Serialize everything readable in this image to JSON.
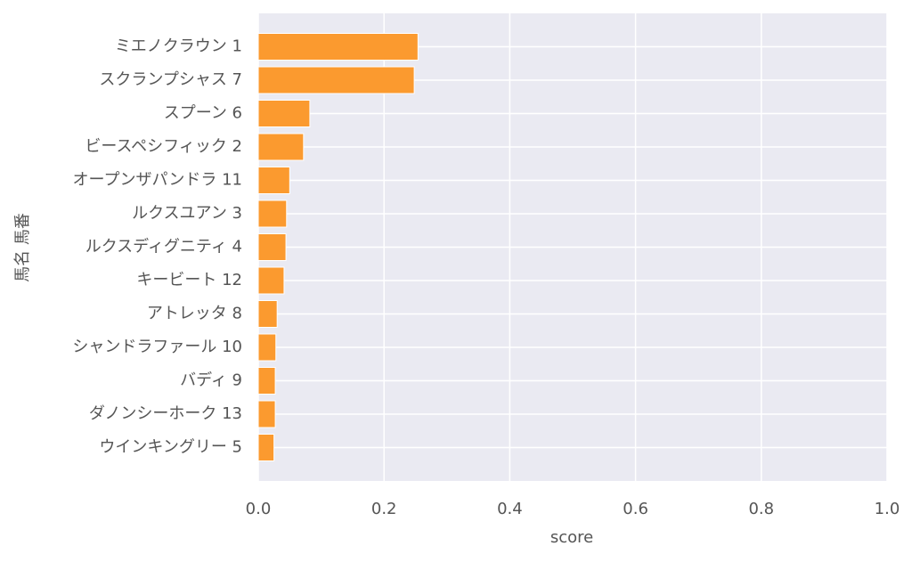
{
  "chart_data": {
    "type": "barh",
    "categories": [
      "ミエノクラウン 1",
      "スクランプシャス 7",
      "スプーン 6",
      "ビースペシフィック 2",
      "オープンザパンドラ 11",
      "ルクスユアン 3",
      "ルクスディグニティ 4",
      "キービート 12",
      "アトレッタ 8",
      "シャンドラファール 10",
      "バディ 9",
      "ダノンシーホーク 13",
      "ウインキングリー 5"
    ],
    "values": [
      0.254,
      0.248,
      0.082,
      0.072,
      0.05,
      0.045,
      0.044,
      0.041,
      0.03,
      0.028,
      0.027,
      0.027,
      0.025
    ],
    "color": "#fb9a2f",
    "xlabel": "score",
    "ylabel": "馬名 馬番",
    "xlim": [
      0,
      1
    ],
    "xticks": [
      {
        "value": 0,
        "label": "0.0"
      },
      0.2,
      0.4,
      0.6,
      0.8,
      {
        "value": 1,
        "label": "1.0"
      }
    ],
    "grid": true
  }
}
